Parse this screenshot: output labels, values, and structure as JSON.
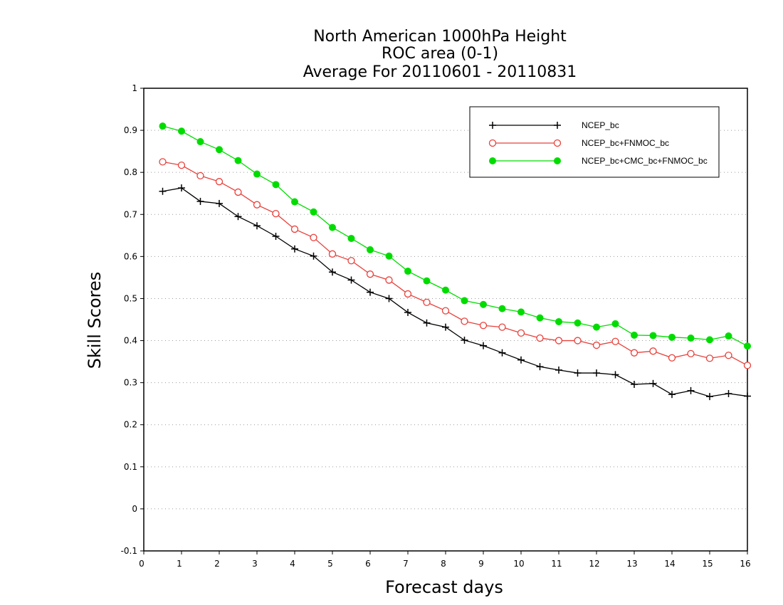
{
  "chart_data": {
    "type": "line",
    "title_lines": [
      "North American 1000hPa Height",
      "ROC area (0-1)",
      "Average For 20110601 - 20110831"
    ],
    "xlabel": "Forecast days",
    "ylabel": "Skill Scores",
    "xlim": [
      0,
      16
    ],
    "ylim": [
      -0.1,
      1
    ],
    "x_ticks": [
      0,
      1,
      2,
      3,
      4,
      5,
      6,
      7,
      8,
      9,
      10,
      11,
      12,
      13,
      14,
      15,
      16
    ],
    "y_ticks": [
      -0.1,
      0,
      0.1,
      0.2,
      0.3,
      0.4,
      0.5,
      0.6,
      0.7,
      0.8,
      0.9,
      1
    ],
    "y_tick_labels": [
      "-0.1",
      "0",
      "0.1",
      "0.2",
      "0.3",
      "0.4",
      "0.5",
      "0.6",
      "0.7",
      "0.8",
      "0.9",
      "1"
    ],
    "grid": "horizontal dotted",
    "legend_position": "top-right",
    "x": [
      0.5,
      1,
      1.5,
      2,
      2.5,
      3,
      3.5,
      4,
      4.5,
      5,
      5.5,
      6,
      6.5,
      7,
      7.5,
      8,
      8.5,
      9,
      9.5,
      10,
      10.5,
      11,
      11.5,
      12,
      12.5,
      13,
      13.5,
      14,
      14.5,
      15,
      15.5,
      16
    ],
    "series": [
      {
        "name": "NCEP_bc",
        "color": "#000000",
        "marker": "plus",
        "values": [
          0.755,
          0.763,
          0.731,
          0.726,
          0.695,
          0.673,
          0.648,
          0.618,
          0.601,
          0.563,
          0.544,
          0.515,
          0.5,
          0.467,
          0.442,
          0.432,
          0.401,
          0.388,
          0.371,
          0.354,
          0.338,
          0.33,
          0.323,
          0.323,
          0.319,
          0.296,
          0.298,
          0.272,
          0.281,
          0.267,
          0.274,
          0.268
        ]
      },
      {
        "name": "NCEP_bc+FNMOC_bc",
        "color": "#e8403a",
        "marker": "open-circle",
        "values": [
          0.825,
          0.817,
          0.792,
          0.778,
          0.753,
          0.723,
          0.702,
          0.665,
          0.645,
          0.606,
          0.59,
          0.558,
          0.544,
          0.511,
          0.491,
          0.471,
          0.446,
          0.436,
          0.432,
          0.418,
          0.406,
          0.4,
          0.4,
          0.389,
          0.398,
          0.371,
          0.375,
          0.359,
          0.369,
          0.358,
          0.365,
          0.341
        ]
      },
      {
        "name": "NCEP_bc+CMC_bc+FNMOC_bc",
        "color": "#00dc00",
        "marker": "filled-circle",
        "values": [
          0.91,
          0.898,
          0.873,
          0.854,
          0.828,
          0.796,
          0.771,
          0.73,
          0.706,
          0.669,
          0.643,
          0.616,
          0.601,
          0.565,
          0.542,
          0.52,
          0.495,
          0.486,
          0.476,
          0.468,
          0.454,
          0.445,
          0.442,
          0.432,
          0.44,
          0.413,
          0.412,
          0.408,
          0.406,
          0.402,
          0.411,
          0.387
        ]
      }
    ]
  }
}
